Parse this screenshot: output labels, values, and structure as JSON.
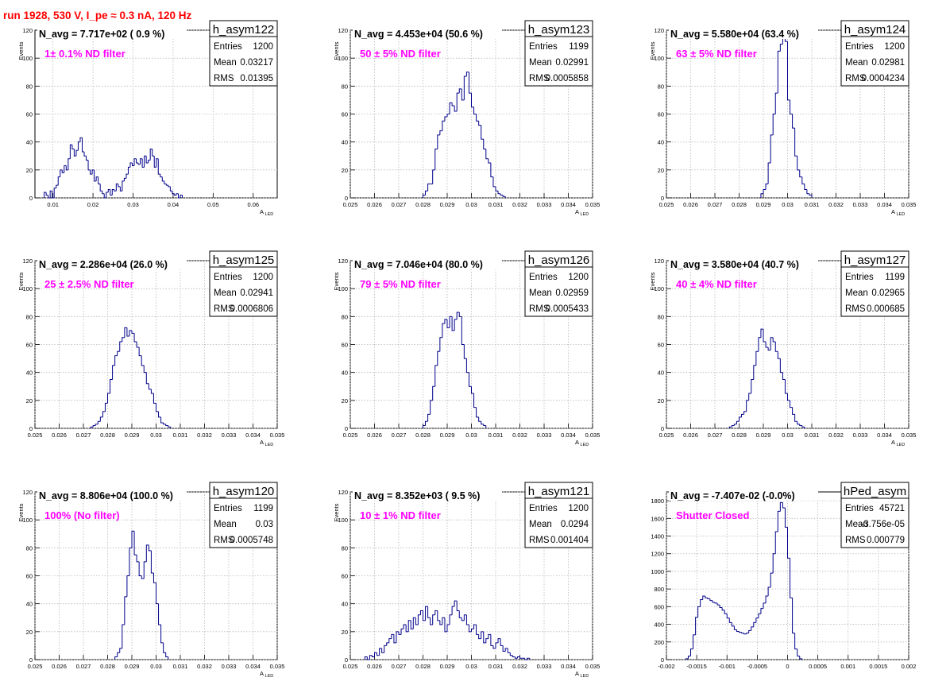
{
  "run_title": "run 1928,   530 V, I_pe ≈ 0.3 nA, 120 Hz",
  "colors": {
    "hist_line": "#00008b",
    "grid": "#b8b8b8",
    "filter_text": "#ff00ff",
    "title_text": "#ff0000"
  },
  "chart_data": [
    {
      "type": "bar",
      "name": "h_asym122",
      "stats": {
        "entries": "1200",
        "mean": "0.03217",
        "rms": "0.01395"
      },
      "navg": "N_avg = 7.717e+02 ( 0.9 %)",
      "filter": "1± 0.1% ND filter",
      "xlabel": "A",
      "xlabel_sub": "LED",
      "ylabel": "Events",
      "xlim": [
        0.0055,
        0.066
      ],
      "ylim": [
        0,
        120
      ],
      "xticks": [
        0.01,
        0.02,
        0.03,
        0.04,
        0.05,
        0.06
      ],
      "xtick_labels": [
        "0.01",
        "0.02",
        "0.03",
        "0.04",
        "0.05",
        "0.06"
      ],
      "yticks": [
        0,
        20,
        40,
        60,
        80,
        100,
        120
      ],
      "ytick_labels": [
        "0",
        "20",
        "40",
        "60",
        "80",
        "100",
        "120"
      ],
      "bin_start": 0.0078,
      "bin_width": 0.0005,
      "values": [
        4,
        2,
        0,
        5,
        0,
        7,
        9,
        15,
        20,
        18,
        23,
        20,
        28,
        38,
        35,
        30,
        34,
        40,
        43,
        33,
        30,
        27,
        20,
        17,
        20,
        12,
        15,
        10,
        5,
        3,
        0,
        4,
        6,
        2,
        6,
        5,
        10,
        8,
        5,
        12,
        14,
        17,
        22,
        25,
        23,
        28,
        25,
        24,
        28,
        22,
        30,
        25,
        27,
        35,
        30,
        22,
        28,
        17,
        15,
        12,
        10,
        9,
        8,
        5,
        3,
        2,
        3,
        0,
        2
      ]
    },
    {
      "type": "bar",
      "name": "h_asym123",
      "stats": {
        "entries": "1199",
        "mean": "0.02991",
        "rms": "0.0005858"
      },
      "navg": "N_avg = 4.453e+04 (50.6 %)",
      "filter": "50 ± 5% ND filter",
      "xlabel": "A",
      "xlabel_sub": "LED",
      "ylabel": "Events",
      "xlim": [
        0.025,
        0.035
      ],
      "ylim": [
        0,
        120
      ],
      "xticks": [
        0.025,
        0.026,
        0.027,
        0.028,
        0.029,
        0.03,
        0.031,
        0.032,
        0.033,
        0.034,
        0.035
      ],
      "xtick_labels": [
        "0.025",
        "0.026",
        "0.027",
        "0.028",
        "0.029",
        "0.03",
        "0.031",
        "0.032",
        "0.033",
        "0.034",
        "0.035"
      ],
      "yticks": [
        0,
        20,
        40,
        60,
        80,
        100,
        120
      ],
      "ytick_labels": [
        "0",
        "20",
        "40",
        "60",
        "80",
        "100",
        "120"
      ],
      "bin_start": 0.028,
      "bin_width": 0.0001,
      "values": [
        2,
        5,
        10,
        10,
        20,
        35,
        45,
        48,
        55,
        58,
        60,
        68,
        66,
        62,
        75,
        78,
        70,
        87,
        90,
        75,
        65,
        60,
        55,
        52,
        42,
        35,
        28,
        25,
        15,
        8,
        5,
        3,
        2,
        1
      ]
    },
    {
      "type": "bar",
      "name": "h_asym124",
      "stats": {
        "entries": "1200",
        "mean": "0.02981",
        "rms": "0.0004234"
      },
      "navg": "N_avg = 5.580e+04 (63.4 %)",
      "filter": "63 ± 5% ND filter",
      "xlabel": "A",
      "xlabel_sub": "LED",
      "ylabel": "Events",
      "xlim": [
        0.025,
        0.035
      ],
      "ylim": [
        0,
        120
      ],
      "xticks": [
        0.025,
        0.026,
        0.027,
        0.028,
        0.029,
        0.03,
        0.031,
        0.032,
        0.033,
        0.034,
        0.035
      ],
      "xtick_labels": [
        "0.025",
        "0.026",
        "0.027",
        "0.028",
        "0.029",
        "0.03",
        "0.031",
        "0.032",
        "0.033",
        "0.034",
        "0.035"
      ],
      "yticks": [
        0,
        20,
        40,
        60,
        80,
        100,
        120
      ],
      "ytick_labels": [
        "0",
        "20",
        "40",
        "60",
        "80",
        "100",
        "120"
      ],
      "bin_start": 0.0289,
      "bin_width": 0.0001,
      "values": [
        3,
        6,
        10,
        25,
        45,
        60,
        75,
        105,
        110,
        115,
        112,
        70,
        60,
        50,
        30,
        20,
        15,
        10,
        6,
        3,
        2
      ]
    },
    {
      "type": "bar",
      "name": "h_asym125",
      "stats": {
        "entries": "1200",
        "mean": "0.02941",
        "rms": "0.0006806"
      },
      "navg": "N_avg = 2.286e+04 (26.0 %)",
      "filter": "25 ± 2.5% ND filter",
      "xlabel": "A",
      "xlabel_sub": "LED",
      "ylabel": "Events",
      "xlim": [
        0.025,
        0.035
      ],
      "ylim": [
        0,
        120
      ],
      "xticks": [
        0.025,
        0.026,
        0.027,
        0.028,
        0.029,
        0.03,
        0.031,
        0.032,
        0.033,
        0.034,
        0.035
      ],
      "xtick_labels": [
        "0.025",
        "0.026",
        "0.027",
        "0.028",
        "0.029",
        "0.03",
        "0.031",
        "0.032",
        "0.033",
        "0.034",
        "0.035"
      ],
      "yticks": [
        0,
        20,
        40,
        60,
        80,
        100,
        120
      ],
      "ytick_labels": [
        "0",
        "20",
        "40",
        "60",
        "80",
        "100",
        "120"
      ],
      "bin_start": 0.0273,
      "bin_width": 0.0001,
      "values": [
        1,
        2,
        3,
        5,
        8,
        12,
        18,
        25,
        35,
        45,
        52,
        55,
        62,
        65,
        72,
        66,
        70,
        68,
        62,
        58,
        52,
        45,
        40,
        32,
        28,
        25,
        18,
        12,
        8,
        4,
        3,
        2,
        1
      ]
    },
    {
      "type": "bar",
      "name": "h_asym126",
      "stats": {
        "entries": "1200",
        "mean": "0.02959",
        "rms": "0.0005433"
      },
      "navg": "N_avg = 7.046e+04 (80.0 %)",
      "filter": "79 ± 5% ND filter",
      "xlabel": "A",
      "xlabel_sub": "LED",
      "ylabel": "Events",
      "xlim": [
        0.025,
        0.035
      ],
      "ylim": [
        0,
        120
      ],
      "xticks": [
        0.025,
        0.026,
        0.027,
        0.028,
        0.029,
        0.03,
        0.031,
        0.032,
        0.033,
        0.034,
        0.035
      ],
      "xtick_labels": [
        "0.025",
        "0.026",
        "0.027",
        "0.028",
        "0.029",
        "0.03",
        "0.031",
        "0.032",
        "0.033",
        "0.034",
        "0.035"
      ],
      "yticks": [
        0,
        20,
        40,
        60,
        80,
        100,
        120
      ],
      "ytick_labels": [
        "0",
        "20",
        "40",
        "60",
        "80",
        "100",
        "120"
      ],
      "bin_start": 0.028,
      "bin_width": 0.0001,
      "values": [
        2,
        5,
        10,
        20,
        30,
        45,
        55,
        65,
        75,
        78,
        72,
        80,
        70,
        78,
        83,
        80,
        60,
        50,
        40,
        30,
        25,
        15,
        8,
        5,
        3,
        2
      ]
    },
    {
      "type": "bar",
      "name": "h_asym127",
      "stats": {
        "entries": "1199",
        "mean": "0.02965",
        "rms": "0.000685"
      },
      "navg": "N_avg = 3.580e+04 (40.7 %)",
      "filter": "40 ± 4% ND filter",
      "xlabel": "A",
      "xlabel_sub": "LED",
      "ylabel": "Events",
      "xlim": [
        0.025,
        0.035
      ],
      "ylim": [
        0,
        120
      ],
      "xticks": [
        0.025,
        0.026,
        0.027,
        0.028,
        0.029,
        0.03,
        0.031,
        0.032,
        0.033,
        0.034,
        0.035
      ],
      "xtick_labels": [
        "0.025",
        "0.026",
        "0.027",
        "0.028",
        "0.029",
        "0.03",
        "0.031",
        "0.032",
        "0.033",
        "0.034",
        "0.035"
      ],
      "yticks": [
        0,
        20,
        40,
        60,
        80,
        100,
        120
      ],
      "ytick_labels": [
        "0",
        "20",
        "40",
        "60",
        "80",
        "100",
        "120"
      ],
      "bin_start": 0.0276,
      "bin_width": 0.0001,
      "values": [
        1,
        2,
        3,
        5,
        8,
        10,
        12,
        20,
        25,
        35,
        45,
        55,
        65,
        71,
        62,
        58,
        56,
        65,
        62,
        55,
        50,
        40,
        35,
        25,
        20,
        15,
        10,
        5,
        3,
        2,
        1
      ]
    },
    {
      "type": "bar",
      "name": "h_asym120",
      "stats": {
        "entries": "1199",
        "mean": "0.03",
        "rms": "0.0005748"
      },
      "navg": "N_avg = 8.806e+04 (100.0 %)",
      "filter": "100% (No filter)",
      "xlabel": "A",
      "xlabel_sub": "LED",
      "ylabel": "Events",
      "xlim": [
        0.025,
        0.035
      ],
      "ylim": [
        0,
        120
      ],
      "xticks": [
        0.025,
        0.026,
        0.027,
        0.028,
        0.029,
        0.03,
        0.031,
        0.032,
        0.033,
        0.034,
        0.035
      ],
      "xtick_labels": [
        "0.025",
        "0.026",
        "0.027",
        "0.028",
        "0.029",
        "0.03",
        "0.031",
        "0.032",
        "0.033",
        "0.034",
        "0.035"
      ],
      "yticks": [
        0,
        20,
        40,
        60,
        80,
        100,
        120
      ],
      "ytick_labels": [
        "0",
        "20",
        "40",
        "60",
        "80",
        "100",
        "120"
      ],
      "bin_start": 0.0283,
      "bin_width": 0.0001,
      "values": [
        2,
        5,
        8,
        25,
        45,
        60,
        80,
        92,
        75,
        70,
        60,
        58,
        70,
        82,
        78,
        62,
        55,
        40,
        25,
        12,
        5,
        2
      ]
    },
    {
      "type": "bar",
      "name": "h_asym121",
      "stats": {
        "entries": "1200",
        "mean": "0.0294",
        "rms": "0.001404"
      },
      "navg": "N_avg = 8.352e+03 ( 9.5 %)",
      "filter": "10 ± 1% ND filter",
      "xlabel": "A",
      "xlabel_sub": "LED",
      "ylabel": "Events",
      "xlim": [
        0.025,
        0.035
      ],
      "ylim": [
        0,
        120
      ],
      "xticks": [
        0.025,
        0.026,
        0.027,
        0.028,
        0.029,
        0.03,
        0.031,
        0.032,
        0.033,
        0.034,
        0.035
      ],
      "xtick_labels": [
        "0.025",
        "0.026",
        "0.027",
        "0.028",
        "0.029",
        "0.03",
        "0.031",
        "0.032",
        "0.033",
        "0.034",
        "0.035"
      ],
      "yticks": [
        0,
        20,
        40,
        60,
        80,
        100,
        120
      ],
      "ytick_labels": [
        "0",
        "20",
        "40",
        "60",
        "80",
        "100",
        "120"
      ],
      "bin_start": 0.0256,
      "bin_width": 0.0001,
      "values": [
        2,
        0,
        3,
        2,
        5,
        3,
        8,
        5,
        10,
        12,
        15,
        18,
        12,
        20,
        18,
        22,
        25,
        20,
        28,
        22,
        30,
        25,
        32,
        35,
        28,
        38,
        30,
        25,
        32,
        35,
        28,
        25,
        30,
        20,
        25,
        32,
        38,
        42,
        35,
        30,
        28,
        32,
        25,
        20,
        22,
        25,
        18,
        15,
        20,
        12,
        15,
        18,
        10,
        8,
        12,
        15,
        10,
        6,
        8,
        5,
        3,
        2,
        1,
        2,
        1,
        1,
        0,
        1
      ]
    },
    {
      "type": "bar",
      "name": "hPed_asym",
      "stats": {
        "entries": "45721",
        "mean": "-3.756e-05",
        "rms": "0.000779"
      },
      "navg": "N_avg = -7.407e-02 (-0.0%)",
      "filter": "Shutter Closed",
      "xlabel": "",
      "xlabel_sub": "",
      "ylabel": "",
      "xlim": [
        -0.002,
        0.002
      ],
      "ylim": [
        0,
        1900
      ],
      "xticks": [
        -0.002,
        -0.0015,
        -0.001,
        -0.0005,
        0,
        0.0005,
        0.001,
        0.0015,
        0.002
      ],
      "xtick_labels": [
        "-0.002",
        "-0.0015",
        "-0.001",
        "-0.0005",
        "0",
        "0.0005",
        "0.001",
        "0.0015",
        "0.002"
      ],
      "yticks": [
        0,
        200,
        400,
        600,
        800,
        1000,
        1200,
        1400,
        1600,
        1800
      ],
      "ytick_labels": [
        "0",
        "200",
        "400",
        "600",
        "800",
        "1000",
        "1200",
        "1400",
        "1600",
        "1800"
      ],
      "bin_start": -0.00168,
      "bin_width": 4e-05,
      "values": [
        10,
        40,
        120,
        280,
        480,
        600,
        680,
        720,
        700,
        690,
        670,
        650,
        640,
        620,
        590,
        560,
        520,
        470,
        420,
        380,
        340,
        320,
        310,
        300,
        290,
        300,
        330,
        370,
        420,
        470,
        520,
        580,
        640,
        720,
        820,
        980,
        1200,
        1450,
        1680,
        1780,
        1720,
        1500,
        1150,
        700,
        300,
        120,
        40,
        10
      ]
    }
  ]
}
